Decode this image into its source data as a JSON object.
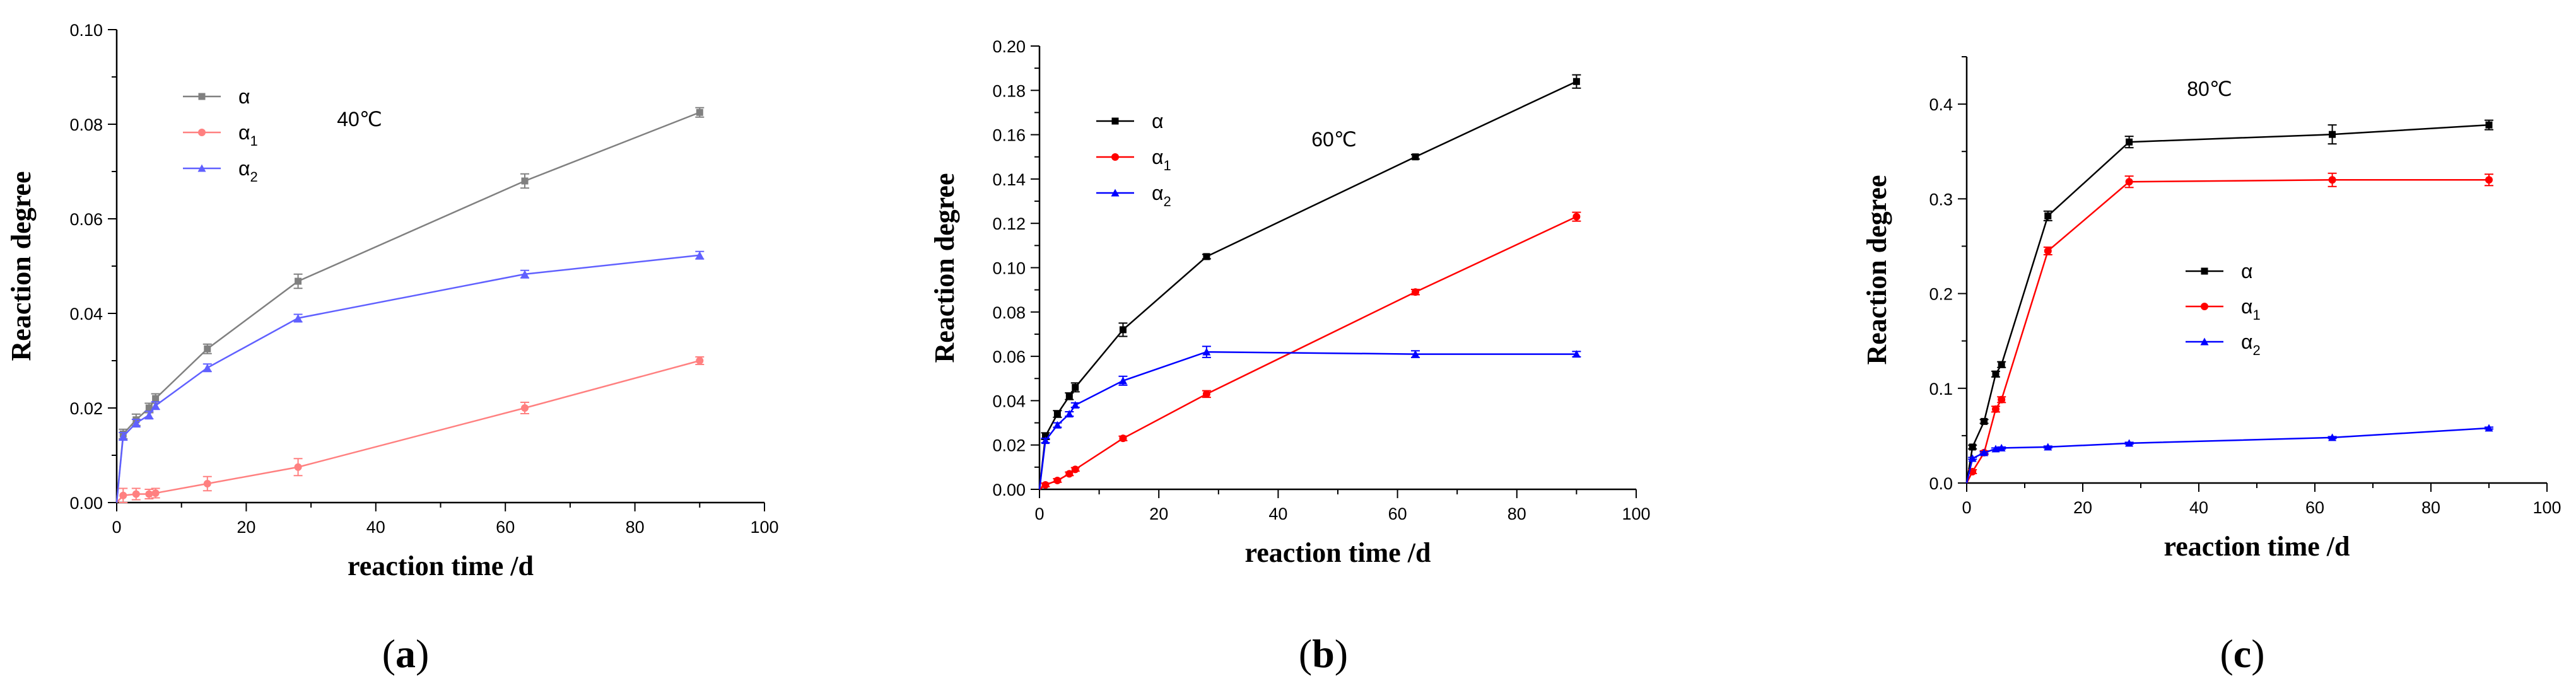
{
  "chart_data": [
    {
      "type": "line",
      "panel": "a",
      "panel_letter": "a",
      "temperature_label": "40℃",
      "xlabel": "reaction time /d",
      "ylabel": "Reaction degree",
      "xlim": [
        0,
        100
      ],
      "ylim": [
        0,
        0.1
      ],
      "xticks": [
        "0",
        "20",
        "40",
        "60",
        "80",
        "100"
      ],
      "yticks": [
        "0.00",
        "0.02",
        "0.04",
        "0.06",
        "0.08",
        "0.10"
      ],
      "legend_position": "top-left",
      "x": [
        1,
        3,
        5,
        6,
        14,
        28,
        63,
        90
      ],
      "series": [
        {
          "name": "α",
          "sub": "",
          "color": "#808080",
          "marker": "square",
          "values": [
            0.0145,
            0.0175,
            0.02,
            0.022,
            0.0325,
            0.0468,
            0.068,
            0.0825
          ],
          "errors": [
            0.001,
            0.0012,
            0.001,
            0.001,
            0.001,
            0.0015,
            0.0015,
            0.001
          ]
        },
        {
          "name": "α",
          "sub": "1",
          "color": "#ff8080",
          "marker": "circle",
          "values": [
            0.0015,
            0.0018,
            0.0018,
            0.002,
            0.004,
            0.0075,
            0.02,
            0.03
          ],
          "errors": [
            0.0015,
            0.0012,
            0.001,
            0.001,
            0.0015,
            0.0018,
            0.0012,
            0.0008
          ]
        },
        {
          "name": "α",
          "sub": "2",
          "color": "#6060ff",
          "marker": "triangle",
          "values": [
            0.014,
            0.0168,
            0.0185,
            0.0205,
            0.0285,
            0.039,
            0.0483,
            0.0523
          ],
          "errors": [
            0.0008,
            0.0008,
            0.0008,
            0.0008,
            0.0008,
            0.0008,
            0.0008,
            0.0008
          ]
        }
      ]
    },
    {
      "type": "line",
      "panel": "b",
      "panel_letter": "b",
      "temperature_label": "60℃",
      "xlabel": "reaction time /d",
      "ylabel": "Reaction degree",
      "xlim": [
        0,
        100
      ],
      "ylim": [
        0,
        0.2
      ],
      "xticks": [
        "0",
        "20",
        "40",
        "60",
        "80",
        "100"
      ],
      "yticks": [
        "0.00",
        "0.02",
        "0.04",
        "0.06",
        "0.08",
        "0.10",
        "0.12",
        "0.14",
        "0.16",
        "0.18",
        "0.20"
      ],
      "legend_position": "top-left",
      "x": [
        1,
        3,
        5,
        6,
        14,
        28,
        63,
        90
      ],
      "series": [
        {
          "name": "α",
          "sub": "",
          "color": "#000000",
          "marker": "square",
          "values": [
            0.024,
            0.034,
            0.042,
            0.046,
            0.072,
            0.105,
            0.15,
            0.184
          ],
          "errors": [
            0.0015,
            0.0015,
            0.0015,
            0.002,
            0.003,
            0.001,
            0.001,
            0.003
          ]
        },
        {
          "name": "α",
          "sub": "1",
          "color": "#ff0000",
          "marker": "circle",
          "values": [
            0.002,
            0.004,
            0.007,
            0.009,
            0.023,
            0.043,
            0.089,
            0.123
          ],
          "errors": [
            0.0008,
            0.0008,
            0.0008,
            0.0008,
            0.001,
            0.0015,
            0.0012,
            0.002
          ]
        },
        {
          "name": "α",
          "sub": "2",
          "color": "#0000ff",
          "marker": "triangle",
          "values": [
            0.022,
            0.029,
            0.034,
            0.038,
            0.049,
            0.062,
            0.061,
            0.061
          ],
          "errors": [
            0.001,
            0.001,
            0.001,
            0.001,
            0.002,
            0.0025,
            0.0015,
            0.0012
          ]
        }
      ]
    },
    {
      "type": "line",
      "panel": "c",
      "panel_letter": "c",
      "temperature_label": "80℃",
      "xlabel": "reaction time /d",
      "ylabel": "Reaction degree",
      "xlim": [
        0,
        100
      ],
      "ylim": [
        0,
        0.45
      ],
      "xticks": [
        "0",
        "20",
        "40",
        "60",
        "80",
        "100"
      ],
      "yticks": [
        "0.0",
        "0.1",
        "0.2",
        "0.3",
        "0.4"
      ],
      "legend_position": "center-left",
      "x": [
        1,
        3,
        5,
        6,
        14,
        28,
        63,
        90
      ],
      "series": [
        {
          "name": "α",
          "sub": "",
          "color": "#000000",
          "marker": "square",
          "values": [
            0.038,
            0.065,
            0.115,
            0.125,
            0.282,
            0.36,
            0.368,
            0.378
          ],
          "errors": [
            0.002,
            0.002,
            0.003,
            0.003,
            0.005,
            0.006,
            0.01,
            0.005
          ]
        },
        {
          "name": "α",
          "sub": "1",
          "color": "#ff0000",
          "marker": "circle",
          "values": [
            0.012,
            0.032,
            0.078,
            0.088,
            0.245,
            0.318,
            0.32,
            0.32
          ],
          "errors": [
            0.002,
            0.002,
            0.003,
            0.003,
            0.004,
            0.006,
            0.007,
            0.006
          ]
        },
        {
          "name": "α",
          "sub": "2",
          "color": "#0000ff",
          "marker": "triangle",
          "values": [
            0.026,
            0.032,
            0.036,
            0.037,
            0.038,
            0.042,
            0.048,
            0.058
          ],
          "errors": [
            0.001,
            0.001,
            0.001,
            0.001,
            0.001,
            0.001,
            0.001,
            0.001
          ]
        }
      ]
    }
  ]
}
